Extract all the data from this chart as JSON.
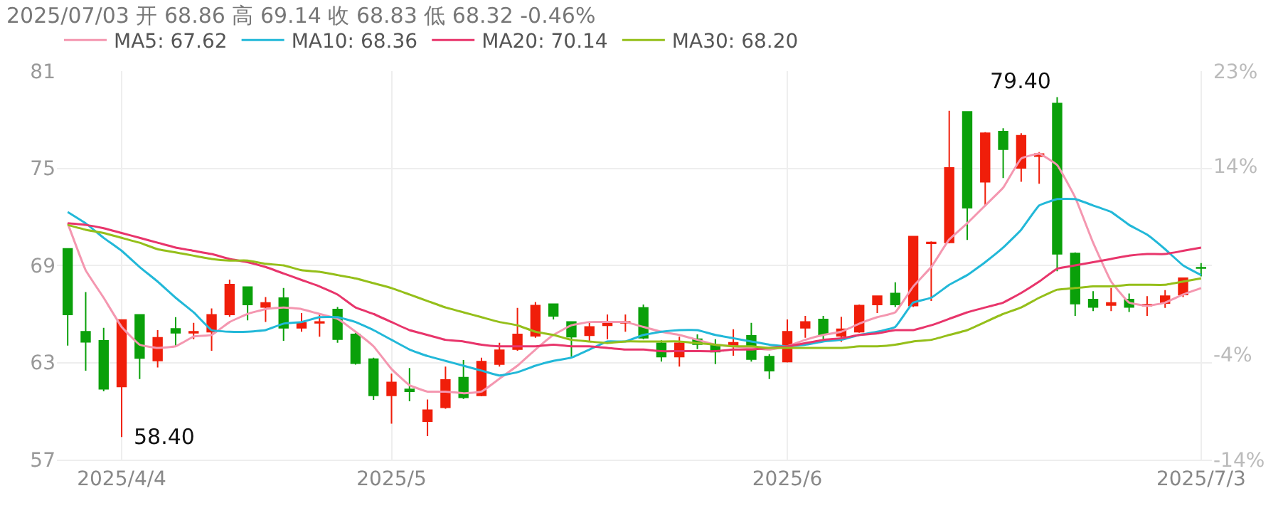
{
  "chart_data": {
    "type": "candlestick",
    "title": "2025/07/03 开 68.86 高 69.14 收 68.83 低 68.32 -0.46%",
    "categories": [
      null,
      null,
      null,
      "2025/4/4",
      null,
      null,
      null,
      null,
      null,
      null,
      null,
      null,
      null,
      null,
      null,
      null,
      null,
      null,
      "2025/5",
      null,
      null,
      null,
      null,
      null,
      null,
      null,
      null,
      null,
      null,
      null,
      null,
      null,
      null,
      null,
      null,
      null,
      null,
      null,
      null,
      null,
      "2025/6",
      null,
      null,
      null,
      null,
      null,
      null,
      null,
      null,
      null,
      null,
      null,
      null,
      null,
      null,
      null,
      null,
      null,
      null,
      null,
      null,
      null,
      null,
      "2025/7/3"
    ],
    "ohlc": [
      [
        70.02,
        70.02,
        64.04,
        65.97
      ],
      [
        64.9,
        67.35,
        62.5,
        64.28
      ],
      [
        64.34,
        65.14,
        61.22,
        61.37
      ],
      [
        61.52,
        65.66,
        58.4,
        65.63
      ],
      [
        65.94,
        65.97,
        61.98,
        63.27
      ],
      [
        63.12,
        65.0,
        62.69,
        64.53
      ],
      [
        65.08,
        65.8,
        63.97,
        64.83
      ],
      [
        64.83,
        65.45,
        64.44,
        64.9
      ],
      [
        64.9,
        66.34,
        63.73,
        65.94
      ],
      [
        65.97,
        68.12,
        65.82,
        67.81
      ],
      [
        67.66,
        67.66,
        65.6,
        66.58
      ],
      [
        66.43,
        67.04,
        65.51,
        66.68
      ],
      [
        66.98,
        67.6,
        64.34,
        65.14
      ],
      [
        65.14,
        66.06,
        64.9,
        65.45
      ],
      [
        65.45,
        65.97,
        64.59,
        65.5
      ],
      [
        66.28,
        66.43,
        64.22,
        64.44
      ],
      [
        64.74,
        64.83,
        62.87,
        62.96
      ],
      [
        63.21,
        63.3,
        60.69,
        60.97
      ],
      [
        60.97,
        62.32,
        59.22,
        61.77
      ],
      [
        61.34,
        62.66,
        60.6,
        61.22
      ],
      [
        59.37,
        60.72,
        58.45,
        60.05
      ],
      [
        60.23,
        62.75,
        60.14,
        61.92
      ],
      [
        62.07,
        63.15,
        60.75,
        60.85
      ],
      [
        60.97,
        63.3,
        60.91,
        63.06
      ],
      [
        62.9,
        64.22,
        62.75,
        63.76
      ],
      [
        63.82,
        66.37,
        63.73,
        64.74
      ],
      [
        64.65,
        66.74,
        64.53,
        66.52
      ],
      [
        66.61,
        66.64,
        65.66,
        65.88
      ],
      [
        65.51,
        65.51,
        63.36,
        64.59
      ],
      [
        64.68,
        65.51,
        64.34,
        65.2
      ],
      [
        65.3,
        65.97,
        64.44,
        65.4
      ],
      [
        65.45,
        65.97,
        64.9,
        65.5
      ],
      [
        66.37,
        66.58,
        64.44,
        64.53
      ],
      [
        64.19,
        64.37,
        63.06,
        63.36
      ],
      [
        63.36,
        64.59,
        62.75,
        64.19
      ],
      [
        64.44,
        64.74,
        63.82,
        64.13
      ],
      [
        64.04,
        64.44,
        62.9,
        63.67
      ],
      [
        64.04,
        65.05,
        63.42,
        64.22
      ],
      [
        64.65,
        65.45,
        63.06,
        63.21
      ],
      [
        63.36,
        63.52,
        61.98,
        62.5
      ],
      [
        63.06,
        65.66,
        63.0,
        64.9
      ],
      [
        65.14,
        65.88,
        64.53,
        65.51
      ],
      [
        65.66,
        65.88,
        64.44,
        64.74
      ],
      [
        64.65,
        65.82,
        64.28,
        65.05
      ],
      [
        64.9,
        66.58,
        64.83,
        66.52
      ],
      [
        66.58,
        67.13,
        66.06,
        67.1
      ],
      [
        67.26,
        67.96,
        66.43,
        66.58
      ],
      [
        66.52,
        70.8,
        66.43,
        70.78
      ],
      [
        70.36,
        70.48,
        66.8,
        70.42
      ],
      [
        70.42,
        78.55,
        70.36,
        75.02
      ],
      [
        78.48,
        78.48,
        70.57,
        72.56
      ],
      [
        74.16,
        77.23,
        72.72,
        77.17
      ],
      [
        77.26,
        77.47,
        74.4,
        76.18
      ],
      [
        75.02,
        77.17,
        74.16,
        77.01
      ],
      [
        75.75,
        76.0,
        74.04,
        75.88
      ],
      [
        79.0,
        79.4,
        68.64,
        69.71
      ],
      [
        69.74,
        69.8,
        65.88,
        66.64
      ],
      [
        66.89,
        67.41,
        66.18,
        66.43
      ],
      [
        66.55,
        67.6,
        66.18,
        66.68
      ],
      [
        66.89,
        67.26,
        66.12,
        66.43
      ],
      [
        66.52,
        67.1,
        65.88,
        66.58
      ],
      [
        66.67,
        67.47,
        66.37,
        67.1
      ],
      [
        67.2,
        68.21,
        67.04,
        68.21
      ],
      [
        68.86,
        69.14,
        68.32,
        68.83
      ]
    ],
    "colors": [
      "#0aa00a",
      "#0aa00a",
      "#0aa00a",
      "#f01e0a",
      "#0aa00a",
      "#f01e0a",
      "#0aa00a",
      "#f01e0a",
      "#f01e0a",
      "#f01e0a",
      "#0aa00a",
      "#f01e0a",
      "#0aa00a",
      "#f01e0a",
      "#f01e0a",
      "#0aa00a",
      "#0aa00a",
      "#0aa00a",
      "#f01e0a",
      "#0aa00a",
      "#f01e0a",
      "#f01e0a",
      "#0aa00a",
      "#f01e0a",
      "#f01e0a",
      "#f01e0a",
      "#f01e0a",
      "#0aa00a",
      "#0aa00a",
      "#f01e0a",
      "#f01e0a",
      "#f01e0a",
      "#0aa00a",
      "#0aa00a",
      "#f01e0a",
      "#0aa00a",
      "#0aa00a",
      "#f01e0a",
      "#0aa00a",
      "#0aa00a",
      "#f01e0a",
      "#f01e0a",
      "#0aa00a",
      "#f01e0a",
      "#f01e0a",
      "#f01e0a",
      "#0aa00a",
      "#f01e0a",
      "#f01e0a",
      "#f01e0a",
      "#0aa00a",
      "#f01e0a",
      "#0aa00a",
      "#f01e0a",
      "#f01e0a",
      "#0aa00a",
      "#0aa00a",
      "#0aa00a",
      "#f01e0a",
      "#0aa00a",
      "#f01e0a",
      "#f01e0a",
      "#f01e0a",
      "#0aa00a"
    ],
    "series": [
      {
        "name": "MA5: 67.62",
        "type": "line",
        "color": "#f497b0",
        "values": [
          71.6,
          68.7,
          67.0,
          65.2,
          64.1,
          63.9,
          64.0,
          64.6,
          64.7,
          65.5,
          66.0,
          66.3,
          66.4,
          66.3,
          66.0,
          65.7,
          64.9,
          64.0,
          62.6,
          61.6,
          61.2,
          61.2,
          61.1,
          61.2,
          62.0,
          62.8,
          63.8,
          64.7,
          65.3,
          65.5,
          65.5,
          65.5,
          65.2,
          64.9,
          64.7,
          64.4,
          64.1,
          64.0,
          63.9,
          63.8,
          64.0,
          64.4,
          64.7,
          64.9,
          65.4,
          65.8,
          66.1,
          67.7,
          68.9,
          70.6,
          71.6,
          72.7,
          73.8,
          75.6,
          75.9,
          75.2,
          73.2,
          70.4,
          68.0,
          66.7,
          66.5,
          66.7,
          67.2,
          67.6
        ]
      },
      {
        "name": "MA10: 68.36",
        "type": "line",
        "color": "#22b8d8",
        "values": [
          72.3,
          71.6,
          70.7,
          69.9,
          68.9,
          68.0,
          67.0,
          66.1,
          65.0,
          64.9,
          64.9,
          65.0,
          65.4,
          65.5,
          65.8,
          65.8,
          65.5,
          65.0,
          64.4,
          63.8,
          63.4,
          63.1,
          62.8,
          62.5,
          62.2,
          62.4,
          62.8,
          63.1,
          63.3,
          63.8,
          64.3,
          64.3,
          64.7,
          64.9,
          65.0,
          65.0,
          64.7,
          64.5,
          64.3,
          64.1,
          64.0,
          64.1,
          64.3,
          64.4,
          64.7,
          64.9,
          65.2,
          66.7,
          67.0,
          67.8,
          68.4,
          69.2,
          70.1,
          71.2,
          72.7,
          73.1,
          73.1,
          72.7,
          72.3,
          71.5,
          70.9,
          70.0,
          69.0,
          68.4
        ]
      },
      {
        "name": "MA20: 70.14",
        "type": "line",
        "color": "#e8356b",
        "values": [
          71.6,
          71.5,
          71.3,
          71.0,
          70.7,
          70.4,
          70.1,
          69.9,
          69.7,
          69.4,
          69.2,
          68.9,
          68.5,
          68.1,
          67.7,
          67.2,
          66.4,
          66.0,
          65.5,
          65.0,
          64.7,
          64.4,
          64.3,
          64.1,
          64.0,
          64.0,
          64.0,
          64.1,
          64.0,
          64.0,
          63.9,
          63.8,
          63.8,
          63.7,
          63.7,
          63.7,
          63.7,
          63.8,
          63.8,
          63.9,
          64.0,
          64.2,
          64.4,
          64.5,
          64.7,
          64.8,
          65.0,
          65.0,
          65.3,
          65.7,
          66.1,
          66.4,
          66.7,
          67.3,
          68.0,
          68.8,
          69.0,
          69.2,
          69.4,
          69.6,
          69.7,
          69.7,
          69.9,
          70.1
        ]
      },
      {
        "name": "MA30: 68.20",
        "type": "line",
        "color": "#95bf1a",
        "values": [
          71.5,
          71.2,
          71.0,
          70.7,
          70.4,
          70.0,
          69.8,
          69.6,
          69.4,
          69.3,
          69.3,
          69.1,
          69.0,
          68.7,
          68.6,
          68.4,
          68.2,
          67.9,
          67.6,
          67.2,
          66.8,
          66.4,
          66.1,
          65.8,
          65.5,
          65.3,
          64.9,
          64.7,
          64.4,
          64.3,
          64.2,
          64.3,
          64.3,
          64.3,
          64.3,
          64.2,
          64.1,
          64.0,
          64.0,
          63.9,
          63.9,
          63.9,
          63.9,
          63.9,
          64.0,
          64.0,
          64.1,
          64.3,
          64.4,
          64.7,
          65.0,
          65.5,
          66.0,
          66.4,
          67.0,
          67.5,
          67.6,
          67.7,
          67.7,
          67.8,
          67.8,
          67.8,
          68.0,
          68.2
        ]
      }
    ],
    "ylim": [
      57,
      81
    ],
    "yticks": [
      57,
      63,
      69,
      75,
      81
    ],
    "y2lim": [
      -14,
      23
    ],
    "y2ticks": [
      {
        "value": 23,
        "label": "23%"
      },
      {
        "value": 14,
        "label": "14%"
      },
      {
        "value": -4,
        "label": "-4%"
      },
      {
        "value": -14,
        "label": "-14%"
      }
    ],
    "annotations": [
      "79.40",
      "58.40"
    ],
    "grid": true,
    "legend": "top left"
  }
}
